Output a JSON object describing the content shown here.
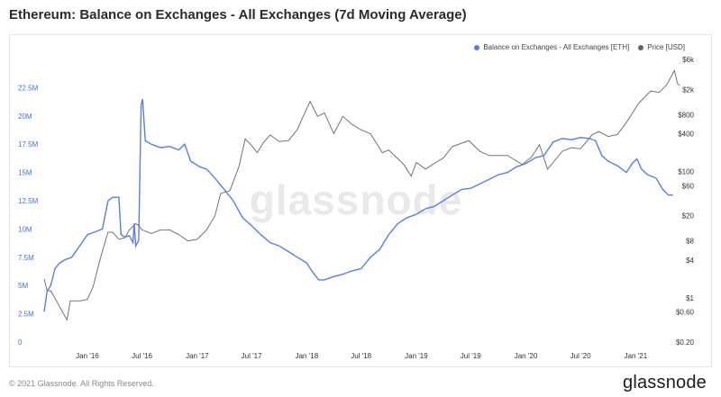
{
  "chart_data": {
    "type": "line",
    "title": "Ethereum: Balance on Exchanges - All Exchanges (7d Moving Average)",
    "watermark": "glassnode",
    "x_tick_labels": [
      "Jan '16",
      "Jul '16",
      "Jan '17",
      "Jul '17",
      "Jan '18",
      "Jul '18",
      "Jan '19",
      "Jul '19",
      "Jan '20",
      "Jul '20",
      "Jan '21"
    ],
    "left_axis": {
      "scale": "linear",
      "range": [
        0,
        25000000
      ],
      "ticks": [
        "0",
        "2.5M",
        "5M",
        "7.5M",
        "10M",
        "12.5M",
        "15M",
        "17.5M",
        "20M",
        "22.5M"
      ],
      "color": "#4a6fd8"
    },
    "right_axis": {
      "scale": "log",
      "range": [
        0.2,
        6000
      ],
      "ticks": [
        "$0.20",
        "$0.60",
        "$1",
        "$4",
        "$8",
        "$20",
        "$60",
        "$100",
        "$400",
        "$800",
        "$2k",
        "$6k"
      ]
    },
    "series": [
      {
        "name": "Balance on Exchanges - All Exchanges [ETH]",
        "axis": "left",
        "color": "#5b7fe0",
        "points": [
          [
            "2015-08-10",
            2.7
          ],
          [
            "2015-08-20",
            4.5
          ],
          [
            "2015-09-01",
            5.0
          ],
          [
            "2015-09-15",
            6.5
          ],
          [
            "2015-10-01",
            7.0
          ],
          [
            "2015-10-20",
            7.3
          ],
          [
            "2015-11-10",
            7.5
          ],
          [
            "2015-12-01",
            8.3
          ],
          [
            "2016-01-01",
            9.5
          ],
          [
            "2016-02-01",
            9.8
          ],
          [
            "2016-02-20",
            10.0
          ],
          [
            "2016-03-10",
            12.5
          ],
          [
            "2016-03-25",
            12.8
          ],
          [
            "2016-04-15",
            12.8
          ],
          [
            "2016-04-22",
            9.5
          ],
          [
            "2016-05-05",
            9.3
          ],
          [
            "2016-05-20",
            9.4
          ],
          [
            "2016-06-01",
            8.8
          ],
          [
            "2016-06-05",
            10.5
          ],
          [
            "2016-06-10",
            8.5
          ],
          [
            "2016-06-20",
            9.0
          ],
          [
            "2016-06-28",
            21.0
          ],
          [
            "2016-07-03",
            21.5
          ],
          [
            "2016-07-12",
            17.8
          ],
          [
            "2016-08-01",
            17.5
          ],
          [
            "2016-09-01",
            17.2
          ],
          [
            "2016-10-01",
            17.3
          ],
          [
            "2016-11-01",
            17.0
          ],
          [
            "2016-11-20",
            17.5
          ],
          [
            "2016-12-10",
            16.0
          ],
          [
            "2017-01-10",
            15.5
          ],
          [
            "2017-02-01",
            15.3
          ],
          [
            "2017-03-01",
            14.5
          ],
          [
            "2017-04-01",
            13.5
          ],
          [
            "2017-05-01",
            12.5
          ],
          [
            "2017-06-01",
            11.0
          ],
          [
            "2017-07-01",
            10.3
          ],
          [
            "2017-08-01",
            9.5
          ],
          [
            "2017-09-01",
            8.8
          ],
          [
            "2017-10-01",
            8.5
          ],
          [
            "2017-11-01",
            8.0
          ],
          [
            "2017-12-01",
            7.5
          ],
          [
            "2018-01-01",
            7.0
          ],
          [
            "2018-01-20",
            6.2
          ],
          [
            "2018-02-10",
            5.5
          ],
          [
            "2018-03-01",
            5.5
          ],
          [
            "2018-04-01",
            5.8
          ],
          [
            "2018-05-01",
            6.0
          ],
          [
            "2018-06-01",
            6.3
          ],
          [
            "2018-07-01",
            6.5
          ],
          [
            "2018-08-01",
            7.5
          ],
          [
            "2018-09-01",
            8.2
          ],
          [
            "2018-10-01",
            9.5
          ],
          [
            "2018-11-01",
            10.5
          ],
          [
            "2018-12-01",
            11.0
          ],
          [
            "2019-01-01",
            11.3
          ],
          [
            "2019-02-01",
            11.8
          ],
          [
            "2019-03-01",
            12.0
          ],
          [
            "2019-04-01",
            12.5
          ],
          [
            "2019-05-01",
            13.0
          ],
          [
            "2019-06-01",
            13.5
          ],
          [
            "2019-07-01",
            13.6
          ],
          [
            "2019-08-01",
            14.0
          ],
          [
            "2019-09-01",
            14.4
          ],
          [
            "2019-10-01",
            14.8
          ],
          [
            "2019-11-01",
            15.0
          ],
          [
            "2019-12-01",
            15.5
          ],
          [
            "2020-01-01",
            15.8
          ],
          [
            "2020-02-01",
            16.3
          ],
          [
            "2020-03-01",
            16.5
          ],
          [
            "2020-04-01",
            17.7
          ],
          [
            "2020-05-01",
            18.0
          ],
          [
            "2020-06-01",
            17.9
          ],
          [
            "2020-07-01",
            18.1
          ],
          [
            "2020-08-01",
            18.0
          ],
          [
            "2020-08-20",
            17.8
          ],
          [
            "2020-09-10",
            16.5
          ],
          [
            "2020-10-01",
            16.0
          ],
          [
            "2020-11-01",
            15.6
          ],
          [
            "2020-12-01",
            15.0
          ],
          [
            "2020-12-20",
            15.8
          ],
          [
            "2021-01-05",
            16.2
          ],
          [
            "2021-01-20",
            15.3
          ],
          [
            "2021-02-10",
            14.8
          ],
          [
            "2021-03-10",
            14.5
          ],
          [
            "2021-04-01",
            13.5
          ],
          [
            "2021-04-20",
            13.0
          ],
          [
            "2021-05-05",
            13.0
          ]
        ]
      },
      {
        "name": "Price [USD]",
        "axis": "right",
        "color": "#666666",
        "points": [
          [
            "2015-08-10",
            2.0
          ],
          [
            "2015-08-20",
            1.3
          ],
          [
            "2015-09-01",
            1.3
          ],
          [
            "2015-09-20",
            0.9
          ],
          [
            "2015-10-10",
            0.6
          ],
          [
            "2015-10-25",
            0.45
          ],
          [
            "2015-11-05",
            0.9
          ],
          [
            "2015-11-20",
            0.9
          ],
          [
            "2015-12-10",
            0.9
          ],
          [
            "2016-01-01",
            0.95
          ],
          [
            "2016-01-20",
            1.5
          ],
          [
            "2016-02-05",
            3.0
          ],
          [
            "2016-02-20",
            5.5
          ],
          [
            "2016-03-10",
            11.0
          ],
          [
            "2016-03-25",
            11.0
          ],
          [
            "2016-04-15",
            8.5
          ],
          [
            "2016-05-05",
            9.0
          ],
          [
            "2016-05-20",
            12.0
          ],
          [
            "2016-06-10",
            15.0
          ],
          [
            "2016-06-20",
            14.0
          ],
          [
            "2016-07-01",
            12.0
          ],
          [
            "2016-08-01",
            10.5
          ],
          [
            "2016-09-01",
            12.0
          ],
          [
            "2016-10-01",
            12.0
          ],
          [
            "2016-11-01",
            10.0
          ],
          [
            "2016-12-01",
            8.0
          ],
          [
            "2017-01-01",
            8.5
          ],
          [
            "2017-02-01",
            12.0
          ],
          [
            "2017-03-01",
            20.0
          ],
          [
            "2017-03-20",
            45.0
          ],
          [
            "2017-04-20",
            50.0
          ],
          [
            "2017-05-20",
            120.0
          ],
          [
            "2017-06-10",
            330.0
          ],
          [
            "2017-07-01",
            260.0
          ],
          [
            "2017-07-20",
            200.0
          ],
          [
            "2017-08-10",
            290.0
          ],
          [
            "2017-09-01",
            380.0
          ],
          [
            "2017-10-01",
            300.0
          ],
          [
            "2017-11-01",
            310.0
          ],
          [
            "2017-12-01",
            470.0
          ],
          [
            "2017-12-20",
            750.0
          ],
          [
            "2018-01-12",
            1300.0
          ],
          [
            "2018-02-06",
            750.0
          ],
          [
            "2018-03-01",
            850.0
          ],
          [
            "2018-04-01",
            400.0
          ],
          [
            "2018-05-01",
            750.0
          ],
          [
            "2018-06-01",
            560.0
          ],
          [
            "2018-07-01",
            460.0
          ],
          [
            "2018-08-01",
            400.0
          ],
          [
            "2018-09-10",
            200.0
          ],
          [
            "2018-10-01",
            220.0
          ],
          [
            "2018-11-20",
            130.0
          ],
          [
            "2018-12-15",
            85.0
          ],
          [
            "2019-01-01",
            140.0
          ],
          [
            "2019-02-01",
            110.0
          ],
          [
            "2019-03-01",
            135.0
          ],
          [
            "2019-04-01",
            165.0
          ],
          [
            "2019-05-01",
            250.0
          ],
          [
            "2019-06-25",
            310.0
          ],
          [
            "2019-08-01",
            210.0
          ],
          [
            "2019-09-01",
            180.0
          ],
          [
            "2019-10-01",
            180.0
          ],
          [
            "2019-11-01",
            180.0
          ],
          [
            "2019-12-20",
            130.0
          ],
          [
            "2020-01-20",
            170.0
          ],
          [
            "2020-02-15",
            270.0
          ],
          [
            "2020-03-13",
            110.0
          ],
          [
            "2020-04-01",
            140.0
          ],
          [
            "2020-05-01",
            210.0
          ],
          [
            "2020-06-01",
            240.0
          ],
          [
            "2020-07-01",
            230.0
          ],
          [
            "2020-08-10",
            390.0
          ],
          [
            "2020-09-01",
            430.0
          ],
          [
            "2020-10-01",
            360.0
          ],
          [
            "2020-11-01",
            390.0
          ],
          [
            "2020-12-01",
            600.0
          ],
          [
            "2021-01-10",
            1200.0
          ],
          [
            "2021-02-20",
            1900.0
          ],
          [
            "2021-03-20",
            1800.0
          ],
          [
            "2021-04-15",
            2400.0
          ],
          [
            "2021-05-10",
            4000.0
          ],
          [
            "2021-05-20",
            2500.0
          ],
          [
            "2021-05-28",
            2300.0
          ]
        ]
      }
    ],
    "legend_position": "top-right",
    "grid": false
  },
  "footer": {
    "copyright": "© 2021 Glassnode. All Rights Reserved."
  },
  "brand": {
    "name": "glassnode"
  }
}
